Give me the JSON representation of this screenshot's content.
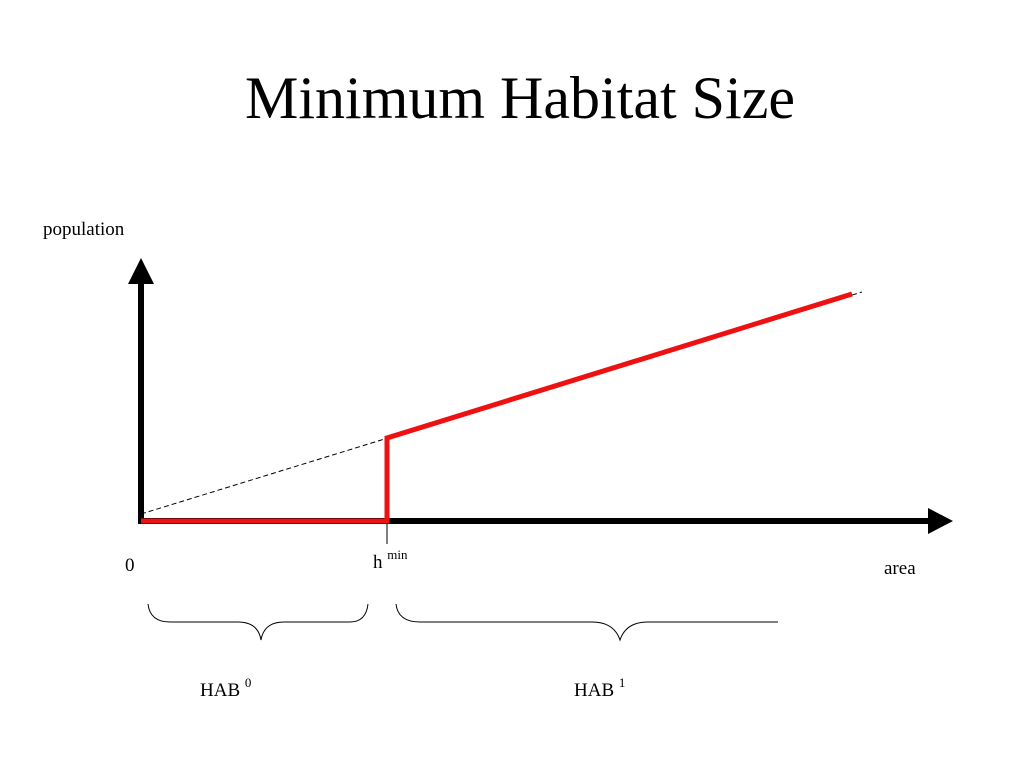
{
  "title": "Minimum Habitat Size",
  "y_axis_label": "population",
  "x_axis_label": "area",
  "origin_label": "0",
  "threshold_label": {
    "base": "h",
    "sup": "min"
  },
  "brace_left_label": {
    "base": "HAB",
    "sup": "0"
  },
  "brace_right_label": {
    "base": "HAB",
    "sup": "1"
  },
  "colors": {
    "axis": "#000000",
    "curve": "#ee1111",
    "reference": "#000000"
  }
}
